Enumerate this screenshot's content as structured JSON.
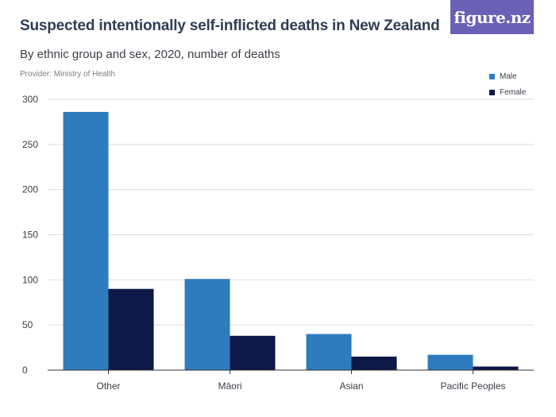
{
  "header": {
    "title": "Suspected intentionally self-inflicted deaths in New Zealand",
    "subtitle": "By ethnic group and sex, 2020, number of deaths",
    "provider": "Provider: Ministry of Health",
    "logo_text": "figure.nz"
  },
  "colors": {
    "male": "#2e7bbd",
    "female": "#0d1847",
    "brand": "#6a60b6",
    "grid": "#dedede",
    "axis": "#333333"
  },
  "chart_data": {
    "type": "bar",
    "title": "Suspected intentionally self-inflicted deaths in New Zealand",
    "subtitle": "By ethnic group and sex, 2020, number of deaths",
    "categories": [
      "Other",
      "Māori",
      "Asian",
      "Pacific Peoples"
    ],
    "series": [
      {
        "name": "Male",
        "values": [
          286,
          101,
          40,
          17
        ]
      },
      {
        "name": "Female",
        "values": [
          90,
          38,
          15,
          4
        ]
      }
    ],
    "ylim": [
      0,
      300
    ],
    "yticks": [
      0,
      50,
      100,
      150,
      200,
      250,
      300
    ],
    "grid": true,
    "legend_position": "top-right",
    "xlabel": "",
    "ylabel": ""
  }
}
